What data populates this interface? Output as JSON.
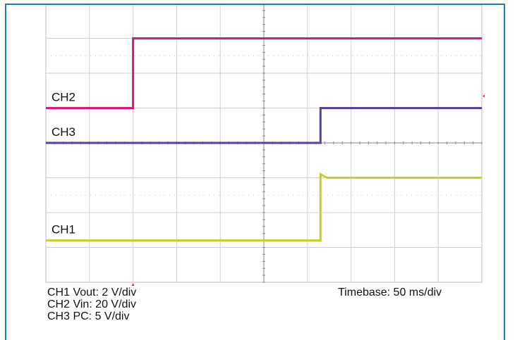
{
  "chart_data": {
    "type": "line",
    "title": "",
    "xlabel": "",
    "ylabel": "",
    "grid": true,
    "x_divisions": 10,
    "y_divisions": 8,
    "xlim": [
      0,
      10
    ],
    "ylim": [
      0,
      8
    ],
    "series": [
      {
        "name": "CH2",
        "color": "#e0157a",
        "x": [
          0,
          2.0,
          2.0,
          10
        ],
        "y": [
          5.0,
          5.0,
          7.0,
          7.0
        ]
      },
      {
        "name": "CH3",
        "color": "#5b3fa0",
        "x": [
          0,
          6.3,
          6.3,
          10
        ],
        "y": [
          4.0,
          4.0,
          5.0,
          5.0
        ]
      },
      {
        "name": "CH1",
        "color": "#c5d024",
        "x": [
          0,
          6.3,
          6.3,
          6.45,
          10
        ],
        "y": [
          1.2,
          1.2,
          3.1,
          3.0,
          3.0
        ]
      }
    ]
  },
  "captions": {
    "ch1": "CH1 Vout: 2 V/div",
    "ch2": "CH2 Vin: 20 V/div",
    "ch3": "CH3 PC: 5 V/div",
    "timebase": "Timebase: 50 ms/div"
  }
}
